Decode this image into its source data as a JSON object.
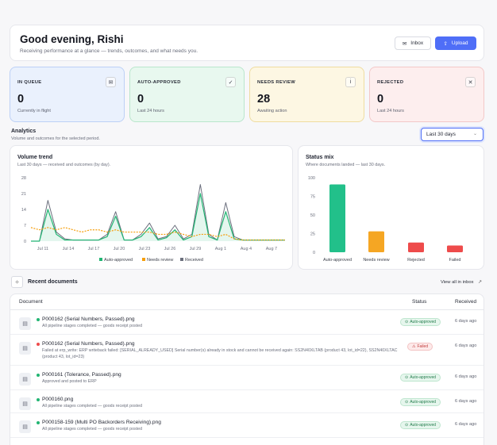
{
  "greeting": {
    "title": "Good evening, Rishi",
    "subtitle": "Receiving performance at a glance — trends, outcomes, and what needs you.",
    "inbox_label": "Inbox",
    "upload_label": "Upload"
  },
  "stats": [
    {
      "label": "IN QUEUE",
      "value": "0",
      "note": "Currently in flight",
      "icon": "inbox-icon"
    },
    {
      "label": "AUTO-APPROVED",
      "value": "0",
      "note": "Last 24 hours",
      "icon": "check-circle-icon"
    },
    {
      "label": "NEEDS REVIEW",
      "value": "28",
      "note": "Awaiting action",
      "icon": "info-circle-icon"
    },
    {
      "label": "REJECTED",
      "value": "0",
      "note": "Last 24 hours",
      "icon": "x-circle-icon"
    }
  ],
  "analytics": {
    "title": "Analytics",
    "subtitle": "Volume and outcomes for the selected period.",
    "range": "Last 30 days"
  },
  "volume_chart": {
    "title": "Volume trend",
    "subtitle": "Last 30 days — received and outcomes (by day).",
    "legend": [
      "Auto-approved",
      "Needs review",
      "Received"
    ]
  },
  "status_chart": {
    "title": "Status mix",
    "subtitle": "Where documents landed — last 30 days."
  },
  "chart_data": [
    {
      "type": "line",
      "title": "Volume trend",
      "yticks": [
        0,
        7,
        14,
        21,
        28
      ],
      "ylim": [
        0,
        28
      ],
      "xticks": [
        "Jul 11",
        "Jul 14",
        "Jul 17",
        "Jul 20",
        "Jul 23",
        "Jul 26",
        "Jul 29",
        "Aug 1",
        "Aug 4",
        "Aug 7"
      ],
      "grid": false,
      "legend_position": "bottom",
      "series": [
        {
          "name": "Received",
          "color": "#6b6f7d",
          "values": [
            0,
            0,
            18,
            4,
            1,
            0.5,
            0.5,
            0.5,
            0.5,
            3,
            13,
            0.5,
            0.5,
            3,
            8,
            1,
            2,
            7,
            1,
            3,
            25,
            3,
            0.5,
            17,
            2,
            0.5,
            0.5,
            0.5,
            0.5,
            0.5,
            0.5
          ]
        },
        {
          "name": "Auto-approved",
          "color": "#22b573",
          "values": [
            0,
            0,
            14,
            3,
            0.5,
            0.5,
            0.5,
            0.5,
            0.5,
            2,
            11,
            0.5,
            0.5,
            2,
            6,
            0.5,
            1.5,
            5,
            0.5,
            2,
            21,
            2,
            0.5,
            13,
            1,
            0.5,
            0.5,
            0.5,
            0.5,
            0.5,
            0.5
          ]
        },
        {
          "name": "Needs review",
          "color": "#f59e0b",
          "values": [
            6,
            5,
            6,
            5,
            6,
            5,
            4,
            5,
            5,
            4,
            5,
            4,
            4,
            4,
            4,
            3,
            3,
            4,
            3,
            2,
            3,
            3,
            2,
            3,
            1,
            0.5,
            0.5,
            0.5,
            0.5,
            0.5,
            0.5
          ]
        }
      ]
    },
    {
      "type": "bar",
      "title": "Status mix",
      "categories": [
        "Auto-approved",
        "Needs review",
        "Rejected",
        "Failed"
      ],
      "values": [
        91,
        28,
        13,
        9
      ],
      "colors": [
        "#22c08a",
        "#f5a623",
        "#ee4b4b",
        "#ee4b4b"
      ],
      "yticks": [
        0,
        25,
        50,
        75,
        100
      ],
      "ylim": [
        0,
        100
      ]
    }
  ],
  "recent": {
    "title": "Recent documents",
    "link": "View all in inbox",
    "columns": [
      "Document",
      "Status",
      "Received"
    ],
    "rows": [
      {
        "name": "P000162 (Serial Numbers, Passed).png",
        "desc": "All pipeline stages completed — goods receipt posted",
        "status": "Auto-approved",
        "kind": "ok",
        "received": "6 days ago"
      },
      {
        "name": "P000162 (Serial Numbers, Passed).png",
        "desc": "Failed at erp_write: ERP writeback failed: [SERIAL_ALREADY_USED] Serial number(s) already in stock and cannot be received again: SS2N40XLTAB (product 43, lot_id=22), SS2N40XLTAC (product 43, lot_id=23)",
        "status": "Failed",
        "kind": "bad",
        "received": "6 days ago"
      },
      {
        "name": "P000161 (Tolerance, Passed).png",
        "desc": "Approved and posted to ERP",
        "status": "Auto-approved",
        "kind": "ok",
        "received": "6 days ago"
      },
      {
        "name": "P000160.png",
        "desc": "All pipeline stages completed — goods receipt posted",
        "status": "Auto-approved",
        "kind": "ok",
        "received": "6 days ago"
      },
      {
        "name": "P000158-159 (Multi PO Backorders Receiving).png",
        "desc": "All pipeline stages completed — goods receipt posted",
        "status": "Auto-approved",
        "kind": "ok",
        "received": "6 days ago"
      }
    ]
  }
}
